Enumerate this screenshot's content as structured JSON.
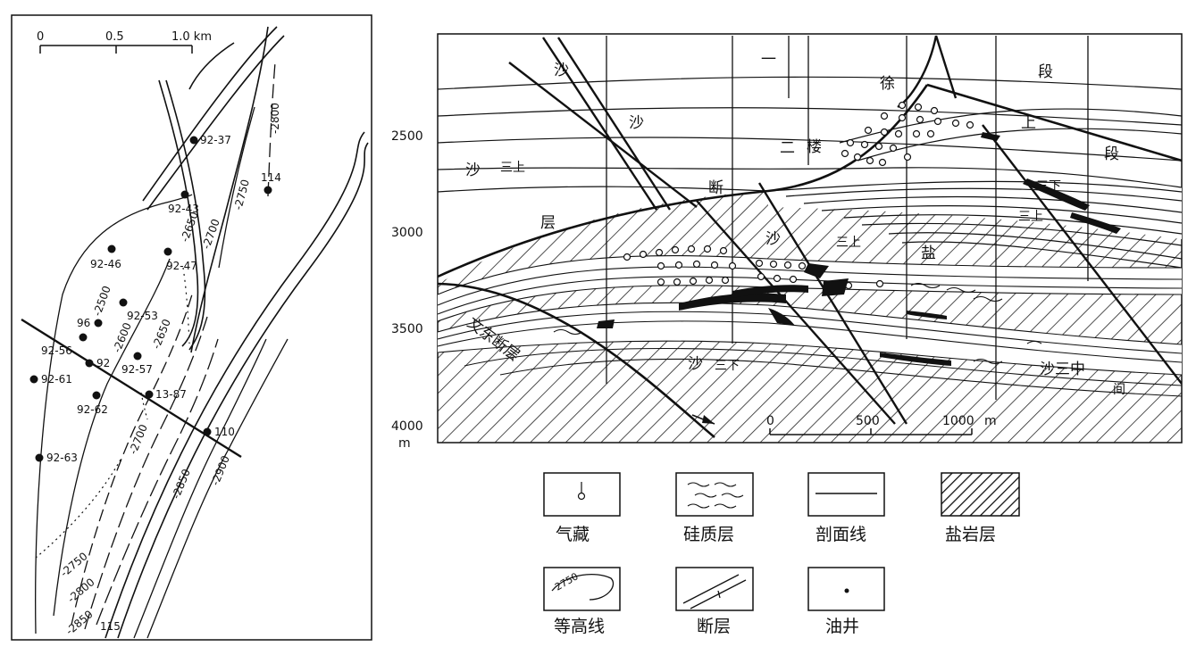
{
  "map": {
    "scale_bar": {
      "ticks": [
        "0",
        "0.5",
        "1.0 km"
      ]
    },
    "wells": [
      "92-37",
      "114",
      "92-43",
      "92-46",
      "92-47",
      "92-53",
      "96",
      "92-56",
      "92",
      "92-57",
      "92-61",
      "13-87",
      "92-62",
      "110",
      "92-63",
      "115"
    ],
    "contours": [
      "-2800",
      "-2750",
      "-2650",
      "-2700",
      "-2500",
      "-2600",
      "-2650",
      "-2700",
      "-2850",
      "-2900",
      "-2750",
      "-2800",
      "-2850"
    ]
  },
  "section": {
    "depth_ticks": [
      "2500",
      "3000",
      "3500",
      "4000"
    ],
    "depth_unit": "m",
    "labels": [
      "沙",
      "一",
      "徐",
      "段",
      "沙",
      "上",
      "二",
      "楼",
      "段",
      "沙",
      "三上",
      "断",
      "三下",
      "层",
      "三上",
      "三上",
      "沙",
      "盐",
      "文东断层",
      "沙",
      "三下",
      "沙三中",
      "间"
    ],
    "scale_bar": {
      "ticks": [
        "0",
        "500",
        "1000"
      ],
      "unit": "m"
    }
  },
  "legend": [
    {
      "label": "气藏",
      "icon": "gas-reservoir-icon"
    },
    {
      "label": "硅质层",
      "icon": "siliceous-layer-icon"
    },
    {
      "label": "剖面线",
      "icon": "section-line-icon"
    },
    {
      "label": "盐岩层",
      "icon": "salt-layer-icon"
    },
    {
      "label": "等高线",
      "icon": "contour-icon",
      "sample": "2750"
    },
    {
      "label": "断层",
      "icon": "fault-icon"
    },
    {
      "label": "油井",
      "icon": "oil-well-icon"
    }
  ]
}
